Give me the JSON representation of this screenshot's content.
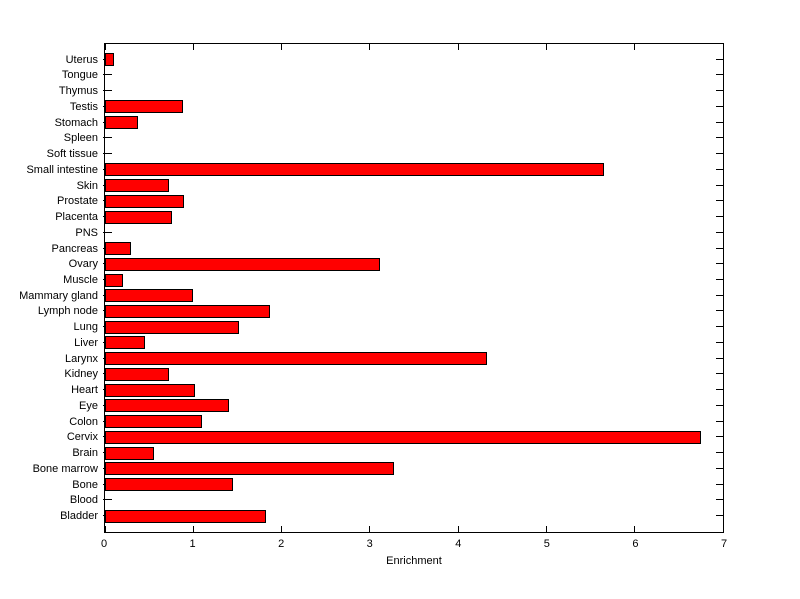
{
  "chart_data": {
    "type": "bar",
    "orientation": "horizontal",
    "title": "",
    "xlabel": "Enrichment",
    "xlim": [
      0,
      7
    ],
    "xticks": [
      "0",
      "1",
      "2",
      "3",
      "4",
      "5",
      "6",
      "7"
    ],
    "grid": false,
    "legend_position": "none",
    "bar_color": "#ff0000",
    "bar_edge_color": "#000000",
    "background_color": "#ffffff",
    "categories": [
      "Uterus",
      "Tongue",
      "Thymus",
      "Testis",
      "Stomach",
      "Spleen",
      "Soft tissue",
      "Small intestine",
      "Skin",
      "Prostate",
      "Placenta",
      "PNS",
      "Pancreas",
      "Ovary",
      "Muscle",
      "Mammary gland",
      "Lymph node",
      "Lung",
      "Liver",
      "Larynx",
      "Kidney",
      "Heart",
      "Eye",
      "Colon",
      "Cervix",
      "Brain",
      "Bone marrow",
      "Bone",
      "Blood",
      "Bladder"
    ],
    "values": [
      0.1,
      0,
      0,
      0.88,
      0.37,
      0,
      0,
      5.65,
      0.72,
      0.89,
      0.76,
      0,
      0.3,
      3.12,
      0.2,
      1.0,
      1.87,
      1.52,
      0.45,
      4.33,
      0.72,
      1.02,
      1.41,
      1.1,
      6.75,
      0.55,
      3.27,
      1.45,
      0,
      1.82
    ]
  }
}
